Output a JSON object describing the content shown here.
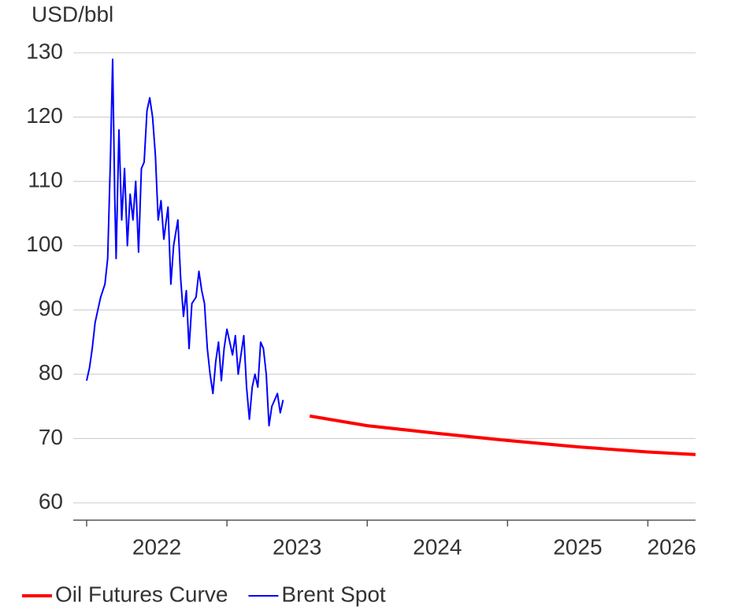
{
  "chart_data": {
    "type": "line",
    "y_label": "USD/bbl",
    "xlim": [
      2022,
      2026.34
    ],
    "xticks": [
      2022,
      2023,
      2024,
      2025,
      2026
    ],
    "ylim": [
      57.3,
      130
    ],
    "yticks": [
      60,
      70,
      80,
      90,
      100,
      110,
      120,
      130
    ],
    "grid": true,
    "legend": "bottom",
    "series": [
      {
        "name": "Oil Futures Curve",
        "color": "#ff0000",
        "x": [
          2023.59,
          2024.0,
          2024.5,
          2025.0,
          2025.5,
          2026.0,
          2026.34
        ],
        "values": [
          73.5,
          72,
          70.8,
          69.7,
          68.7,
          67.9,
          67.5
        ]
      },
      {
        "name": "Brent Spot",
        "color": "#0000ff",
        "x": [
          2022.0,
          2022.02,
          2022.04,
          2022.06,
          2022.08,
          2022.1,
          2022.13,
          2022.15,
          2022.17,
          2022.185,
          2022.2,
          2022.21,
          2022.23,
          2022.25,
          2022.27,
          2022.29,
          2022.31,
          2022.33,
          2022.35,
          2022.37,
          2022.39,
          2022.41,
          2022.43,
          2022.45,
          2022.47,
          2022.49,
          2022.51,
          2022.53,
          2022.55,
          2022.58,
          2022.6,
          2022.62,
          2022.65,
          2022.67,
          2022.69,
          2022.71,
          2022.73,
          2022.75,
          2022.78,
          2022.8,
          2022.82,
          2022.84,
          2022.86,
          2022.88,
          2022.9,
          2022.92,
          2022.94,
          2022.96,
          2022.98,
          2023.0,
          2023.02,
          2023.04,
          2023.06,
          2023.08,
          2023.1,
          2023.12,
          2023.14,
          2023.16,
          2023.18,
          2023.2,
          2023.22,
          2023.24,
          2023.26,
          2023.28,
          2023.3,
          2023.32,
          2023.34,
          2023.36,
          2023.38,
          2023.4
        ],
        "values": [
          79,
          81,
          84,
          88,
          90,
          92,
          94,
          98,
          114,
          129,
          108,
          98,
          118,
          104,
          112,
          100,
          108,
          104,
          110,
          99,
          112,
          113,
          121,
          123,
          120,
          114,
          104,
          107,
          101,
          106,
          94,
          100,
          104,
          95,
          89,
          93,
          84,
          91,
          92,
          96,
          93,
          91,
          84,
          80,
          77,
          82,
          85,
          79,
          84,
          87,
          85,
          83,
          86,
          80,
          83,
          86,
          78,
          73,
          78,
          80,
          78,
          85,
          84,
          80,
          72,
          75,
          76,
          77,
          74,
          76
        ]
      }
    ]
  }
}
